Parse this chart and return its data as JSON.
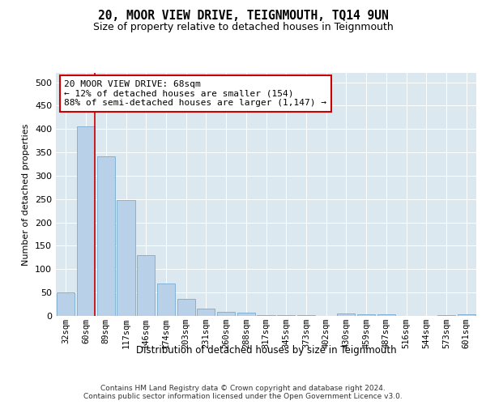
{
  "title": "20, MOOR VIEW DRIVE, TEIGNMOUTH, TQ14 9UN",
  "subtitle": "Size of property relative to detached houses in Teignmouth",
  "xlabel": "Distribution of detached houses by size in Teignmouth",
  "ylabel": "Number of detached properties",
  "categories": [
    "32sqm",
    "60sqm",
    "89sqm",
    "117sqm",
    "146sqm",
    "174sqm",
    "203sqm",
    "231sqm",
    "260sqm",
    "288sqm",
    "317sqm",
    "345sqm",
    "373sqm",
    "402sqm",
    "430sqm",
    "459sqm",
    "487sqm",
    "516sqm",
    "544sqm",
    "573sqm",
    "601sqm"
  ],
  "values": [
    50,
    405,
    342,
    247,
    130,
    70,
    37,
    16,
    8,
    7,
    2,
    1,
    1,
    0,
    5,
    3,
    4,
    0,
    0,
    1,
    3
  ],
  "bar_color": "#b8d0e8",
  "bar_edge_color": "#7aaad0",
  "vline_color": "#cc0000",
  "annotation_text": "20 MOOR VIEW DRIVE: 68sqm\n← 12% of detached houses are smaller (154)\n88% of semi-detached houses are larger (1,147) →",
  "annotation_box_facecolor": "#ffffff",
  "annotation_box_edgecolor": "#cc0000",
  "ylim": [
    0,
    520
  ],
  "yticks": [
    0,
    50,
    100,
    150,
    200,
    250,
    300,
    350,
    400,
    450,
    500
  ],
  "plot_bg_color": "#dce8f0",
  "footer_line1": "Contains HM Land Registry data © Crown copyright and database right 2024.",
  "footer_line2": "Contains public sector information licensed under the Open Government Licence v3.0."
}
